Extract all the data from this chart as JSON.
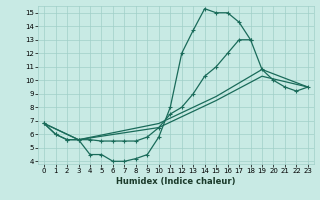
{
  "title": "",
  "xlabel": "Humidex (Indice chaleur)",
  "ylabel": "",
  "xlim": [
    -0.5,
    23.5
  ],
  "ylim": [
    3.8,
    15.5
  ],
  "xticks": [
    0,
    1,
    2,
    3,
    4,
    5,
    6,
    7,
    8,
    9,
    10,
    11,
    12,
    13,
    14,
    15,
    16,
    17,
    18,
    19,
    20,
    21,
    22,
    23
  ],
  "yticks": [
    4,
    5,
    6,
    7,
    8,
    9,
    10,
    11,
    12,
    13,
    14,
    15
  ],
  "bg_color": "#c8eae4",
  "grid_color": "#a0cfc8",
  "line_color": "#1a6b5a",
  "line_width": 0.9,
  "marker_size": 3.5,
  "line1_x": [
    0,
    1,
    2,
    3,
    4,
    5,
    6,
    7,
    8,
    9,
    10,
    11,
    12,
    13,
    14,
    15,
    16,
    17,
    18
  ],
  "line1_y": [
    6.8,
    6.0,
    5.6,
    5.6,
    4.5,
    4.5,
    4.0,
    4.0,
    4.2,
    4.5,
    5.8,
    8.0,
    12.0,
    13.7,
    15.3,
    15.0,
    15.0,
    14.3,
    13.0
  ],
  "line2_x": [
    0,
    1,
    2,
    3,
    4,
    5,
    6,
    7,
    8,
    9,
    10,
    11,
    12,
    13,
    14,
    15,
    16,
    17,
    18,
    19,
    20,
    21,
    22,
    23
  ],
  "line2_y": [
    6.8,
    6.0,
    5.6,
    5.6,
    5.6,
    5.5,
    5.5,
    5.5,
    5.5,
    5.8,
    6.5,
    7.5,
    8.0,
    9.0,
    10.3,
    11.0,
    12.0,
    13.0,
    13.0,
    10.8,
    10.0,
    9.5,
    9.2,
    9.5
  ],
  "line3_x": [
    0,
    3,
    10,
    15,
    19,
    23
  ],
  "line3_y": [
    6.8,
    5.6,
    6.5,
    8.5,
    10.3,
    9.5
  ],
  "line4_x": [
    0,
    3,
    10,
    15,
    19,
    23
  ],
  "line4_y": [
    6.8,
    5.6,
    6.8,
    8.8,
    10.8,
    9.5
  ],
  "tick_fontsize": 5,
  "xlabel_fontsize": 6
}
